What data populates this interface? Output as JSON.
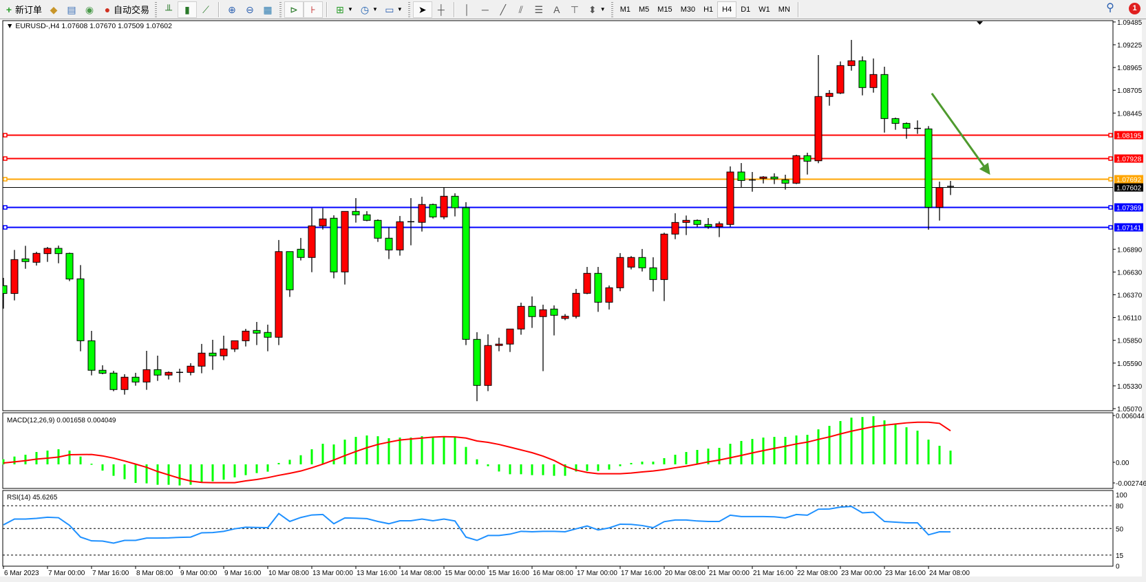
{
  "toolbar": {
    "new_order_label": "新订单",
    "auto_trading_label": "自动交易",
    "icons": [
      "new-order-icon",
      "market-watch-icon",
      "data-window-icon",
      "navigator-icon",
      "terminal-icon",
      "auto-trading-icon",
      "bar-chart-icon",
      "candlestick-icon",
      "line-chart-icon",
      "zoom-in-icon",
      "zoom-out-icon",
      "tile-windows-icon",
      "autoscroll-icon",
      "chart-shift-icon",
      "indicators-icon",
      "periods-icon",
      "templates-icon",
      "cursor-icon",
      "crosshair-icon",
      "vertical-line-icon",
      "horizontal-line-icon",
      "trendline-icon",
      "equidistant-channel-icon",
      "fibonacci-icon",
      "text-icon",
      "text-label-icon",
      "arrows-icon",
      "search-icon",
      "notification-icon"
    ],
    "timeframes": [
      "M1",
      "M5",
      "M15",
      "M30",
      "H1",
      "H4",
      "D1",
      "W1",
      "MN"
    ],
    "active_timeframe": "H4",
    "notification_count": "1"
  },
  "main_chart": {
    "header": "EURUSD-,H4  1.07608 1.07670 1.07509 1.07602",
    "symbol": "EURUSD-",
    "timeframe": "H4",
    "colors": {
      "bull": "#ff0000",
      "bear": "#00ff00",
      "outline": "#000000",
      "arrow": "#4e9a2e"
    }
  },
  "chart_data": [
    {
      "type": "candlestick",
      "title": "EURUSD-,H4",
      "ohlc_header": {
        "open": 1.07608,
        "high": 1.0767,
        "low": 1.07509,
        "close": 1.07602
      },
      "ylim": [
        1.0507,
        1.09485
      ],
      "price_ticks": [
        "1.09485",
        "1.09225",
        "1.08965",
        "1.08705",
        "1.08445",
        "1.06890",
        "1.06630",
        "1.06370",
        "1.06110",
        "1.05850",
        "1.05590",
        "1.05330",
        "1.05070"
      ],
      "x_tick_labels": [
        "6 Mar 2023",
        "7 Mar 00:00",
        "7 Mar 16:00",
        "8 Mar 08:00",
        "9 Mar 00:00",
        "9 Mar 16:00",
        "10 Mar 08:00",
        "13 Mar 00:00",
        "13 Mar 16:00",
        "14 Mar 08:00",
        "15 Mar 00:00",
        "15 Mar 16:00",
        "16 Mar 08:00",
        "17 Mar 00:00",
        "17 Mar 16:00",
        "20 Mar 08:00",
        "21 Mar 00:00",
        "21 Mar 16:00",
        "22 Mar 08:00",
        "23 Mar 00:00",
        "23 Mar 16:00",
        "24 Mar 08:00"
      ],
      "x_tick_every_bars": 4,
      "horizontal_levels": [
        {
          "price": "1.08195",
          "color": "#ff0000"
        },
        {
          "price": "1.07928",
          "color": "#ff0000"
        },
        {
          "price": "1.07692",
          "color": "#ffa500"
        },
        {
          "price": "1.07602",
          "color": "#000000",
          "current": true
        },
        {
          "price": "1.07369",
          "color": "#0000ff"
        },
        {
          "price": "1.07141",
          "color": "#0000ff"
        }
      ],
      "annotation": {
        "type": "arrow",
        "direction": "down-right",
        "from": {
          "bar": 84.3,
          "price": 1.0867
        },
        "to": {
          "bar": 89.6,
          "price": 1.0774
        }
      },
      "candles": [
        [
          1.06474,
          1.06563,
          1.06212,
          1.06385
        ],
        [
          1.06385,
          1.06882,
          1.06306,
          1.06772
        ],
        [
          1.0678,
          1.06929,
          1.06667,
          1.06749
        ],
        [
          1.06741,
          1.06861,
          1.06704,
          1.06843
        ],
        [
          1.0684,
          1.06916,
          1.06746,
          1.069
        ],
        [
          1.069,
          1.06932,
          1.0673,
          1.0684
        ],
        [
          1.06843,
          1.06851,
          1.06526,
          1.0655
        ],
        [
          1.06552,
          1.06709,
          1.05725,
          1.05845
        ],
        [
          1.05845,
          1.05958,
          1.0545,
          1.05508
        ],
        [
          1.05508,
          1.05565,
          1.05463,
          1.05474
        ],
        [
          1.05476,
          1.05502,
          1.05269,
          1.05288
        ],
        [
          1.05288,
          1.05463,
          1.0523,
          1.05429
        ],
        [
          1.05429,
          1.05479,
          1.05332,
          1.05374
        ],
        [
          1.05374,
          1.0573,
          1.05285,
          1.05515
        ],
        [
          1.05515,
          1.05675,
          1.05387,
          1.05453
        ],
        [
          1.05453,
          1.05495,
          1.05403,
          1.05484
        ],
        [
          1.05484,
          1.05526,
          1.05371,
          1.05481
        ],
        [
          1.05484,
          1.05589,
          1.0545,
          1.05555
        ],
        [
          1.05555,
          1.05809,
          1.05474,
          1.05704
        ],
        [
          1.05704,
          1.05856,
          1.05513,
          1.05673
        ],
        [
          1.05673,
          1.05903,
          1.05623,
          1.05751
        ],
        [
          1.05751,
          1.05845,
          1.05717,
          1.05845
        ],
        [
          1.05845,
          1.05981,
          1.0578,
          1.05955
        ],
        [
          1.05963,
          1.0606,
          1.05796,
          1.05932
        ],
        [
          1.0594,
          1.06029,
          1.05725,
          1.05885
        ],
        [
          1.05885,
          1.06995,
          1.05796,
          1.06863
        ],
        [
          1.06863,
          1.06863,
          1.06346,
          1.06427
        ],
        [
          1.0689,
          1.07019,
          1.06762,
          1.06796
        ],
        [
          1.06796,
          1.07359,
          1.06628,
          1.07157
        ],
        [
          1.07157,
          1.07359,
          1.07115,
          1.07236
        ],
        [
          1.07244,
          1.07278,
          1.06558,
          1.06631
        ],
        [
          1.06631,
          1.07322,
          1.06487,
          1.07322
        ],
        [
          1.07322,
          1.07474,
          1.07194,
          1.07283
        ],
        [
          1.07283,
          1.07325,
          1.0721,
          1.0722
        ],
        [
          1.0722,
          1.07231,
          1.06974,
          1.07016
        ],
        [
          1.07016,
          1.07139,
          1.06778,
          1.06882
        ],
        [
          1.06882,
          1.0727,
          1.06817,
          1.07204
        ],
        [
          1.07204,
          1.07474,
          1.06935,
          1.072
        ],
        [
          1.07197,
          1.0749,
          1.07092,
          1.07401
        ],
        [
          1.07401,
          1.07411,
          1.07241,
          1.07259
        ],
        [
          1.07259,
          1.07595,
          1.07233,
          1.07495
        ],
        [
          1.07495,
          1.07529,
          1.07265,
          1.07364
        ],
        [
          1.07364,
          1.07427,
          1.05796,
          1.05861
        ],
        [
          1.05861,
          1.05943,
          1.05155,
          1.05335
        ],
        [
          1.05335,
          1.05919,
          1.0527,
          1.05791
        ],
        [
          1.05791,
          1.0588,
          1.05725,
          1.05807
        ],
        [
          1.05807,
          1.05979,
          1.05717,
          1.05979
        ],
        [
          1.05979,
          1.0628,
          1.05914,
          1.06238
        ],
        [
          1.06238,
          1.06351,
          1.05992,
          1.06121
        ],
        [
          1.06121,
          1.06257,
          1.05498,
          1.06199
        ],
        [
          1.06207,
          1.06249,
          1.05906,
          1.06136
        ],
        [
          1.061,
          1.0615,
          1.0608,
          1.06125
        ],
        [
          1.06123,
          1.06437,
          1.061,
          1.06387
        ],
        [
          1.06387,
          1.06688,
          1.06377,
          1.06615
        ],
        [
          1.06615,
          1.06688,
          1.06175,
          1.06285
        ],
        [
          1.06285,
          1.06476,
          1.06202,
          1.0645
        ],
        [
          1.0645,
          1.06846,
          1.06411,
          1.06796
        ],
        [
          1.06686,
          1.06812,
          1.0666,
          1.06796
        ],
        [
          1.06796,
          1.06893,
          1.06636,
          1.06678
        ],
        [
          1.06678,
          1.06798,
          1.06408,
          1.06544
        ],
        [
          1.06544,
          1.07079,
          1.06298,
          1.07063
        ],
        [
          1.07063,
          1.07301,
          1.07005,
          1.07196
        ],
        [
          1.07196,
          1.07275,
          1.07052,
          1.0722
        ],
        [
          1.0722,
          1.0723,
          1.07144,
          1.07173
        ],
        [
          1.07173,
          1.07246,
          1.07123,
          1.07147
        ],
        [
          1.07147,
          1.07207,
          1.07029,
          1.07181
        ],
        [
          1.07173,
          1.07836,
          1.07144,
          1.07772
        ],
        [
          1.07772,
          1.07874,
          1.076,
          1.07675
        ],
        [
          1.07681,
          1.07772,
          1.07547,
          1.07673
        ],
        [
          1.07699,
          1.07725,
          1.07641,
          1.07715
        ],
        [
          1.07715,
          1.07757,
          1.07634,
          1.07694
        ],
        [
          1.07683,
          1.07741,
          1.07571,
          1.07644
        ],
        [
          1.07644,
          1.07969,
          1.07634,
          1.07958
        ],
        [
          1.07958,
          1.07992,
          1.07743,
          1.07895
        ],
        [
          1.079,
          1.09107,
          1.07872,
          1.08634
        ],
        [
          1.08634,
          1.08707,
          1.08529,
          1.0867
        ],
        [
          1.08673,
          1.09034,
          1.08662,
          1.08987
        ],
        [
          1.08987,
          1.0928,
          1.08929,
          1.09042
        ],
        [
          1.09042,
          1.09092,
          1.08647,
          1.08736
        ],
        [
          1.08736,
          1.09068,
          1.08678,
          1.08885
        ],
        [
          1.08885,
          1.08974,
          1.08222,
          1.08382
        ],
        [
          1.08382,
          1.08393,
          1.08254,
          1.08327
        ],
        [
          1.08327,
          1.08338,
          1.08152,
          1.08272
        ],
        [
          1.0827,
          1.08361,
          1.08207,
          1.08267
        ],
        [
          1.08264,
          1.08296,
          1.07113,
          1.07369
        ],
        [
          1.07369,
          1.07662,
          1.07217,
          1.07594
        ],
        [
          1.07608,
          1.0767,
          1.07509,
          1.07602
        ]
      ]
    },
    {
      "type": "bar",
      "label": "MACD(12,26,9) 0.001658 0.004049",
      "ylim": [
        -0.002746,
        0.006044
      ],
      "y_tick_labels": [
        "0.006044",
        "0.00",
        "-0.002746"
      ],
      "colors": {
        "histogram": "#00ff00",
        "signal": "#ff0000"
      },
      "histogram": [
        0.00061,
        0.00094,
        0.00116,
        0.00149,
        0.00166,
        0.00182,
        0.00166,
        0.00094,
        8e-05,
        -0.00075,
        -0.00138,
        -0.00179,
        -0.00224,
        -0.00229,
        -0.00246,
        -0.00246,
        -0.00254,
        -0.00246,
        -0.00221,
        -0.00204,
        -0.00185,
        -0.00157,
        -0.0013,
        -0.00105,
        -0.00088,
        0.00017,
        0.00055,
        0.0011,
        0.00182,
        0.00248,
        0.0024,
        0.00298,
        0.00331,
        0.00348,
        0.00339,
        0.00315,
        0.00323,
        0.00323,
        0.00339,
        0.00331,
        0.00339,
        0.00331,
        0.0021,
        0.00061,
        -0.00022,
        -0.00086,
        -0.00119,
        -0.00119,
        -0.0013,
        -0.0013,
        -0.00138,
        -0.00138,
        -0.00086,
        -0.0008,
        -0.0008,
        -0.00063,
        -0.00022,
        0.00017,
        0.00033,
        0.00033,
        0.00075,
        0.00116,
        0.00149,
        0.00174,
        0.0019,
        0.00199,
        0.00248,
        0.00282,
        0.00306,
        0.00323,
        0.00331,
        0.00331,
        0.00348,
        0.00356,
        0.00422,
        0.00464,
        0.00522,
        0.00563,
        0.00571,
        0.0058,
        0.0053,
        0.00489,
        0.00447,
        0.00406,
        0.00298,
        0.00224,
        0.001658
      ],
      "signal": [
        0.00017,
        0.0003,
        0.00045,
        0.00063,
        0.00075,
        0.00088,
        0.00116,
        0.00118,
        0.00119,
        0.00102,
        0.00075,
        0.00041,
        3e-05,
        -0.00036,
        -0.00086,
        -0.00127,
        -0.00168,
        -0.00201,
        -0.00218,
        -0.00221,
        -0.00221,
        -0.00221,
        -0.00199,
        -0.00182,
        -0.0016,
        -0.00132,
        -0.00108,
        -0.0008,
        -0.00041,
        3e-05,
        0.00052,
        0.00105,
        0.00155,
        0.00201,
        0.0024,
        0.00268,
        0.00293,
        0.00306,
        0.00317,
        0.00328,
        0.00334,
        0.00331,
        0.00317,
        0.00282,
        0.00265,
        0.0024,
        0.00207,
        0.00174,
        0.00141,
        0.00099,
        0.00047,
        -0.00022,
        -0.00069,
        -0.00097,
        -0.00113,
        -0.00113,
        -0.00113,
        -0.00105,
        -0.00091,
        -0.0008,
        -0.00063,
        -0.00041,
        -0.00022,
        3e-05,
        0.0003,
        0.00052,
        0.0008,
        0.00108,
        0.00138,
        0.00166,
        0.00193,
        0.00218,
        0.00246,
        0.00268,
        0.00301,
        0.00331,
        0.00367,
        0.004,
        0.00428,
        0.00455,
        0.00472,
        0.00486,
        0.005,
        0.00508,
        0.00508,
        0.00494,
        0.004049
      ]
    },
    {
      "type": "line",
      "label": "RSI(14) 45.6265",
      "ylim": [
        0,
        100
      ],
      "levels": [
        80,
        50,
        15
      ],
      "y_tick_labels": [
        "100",
        "80",
        "50",
        "15",
        "0"
      ],
      "color": "#1e90ff",
      "values": [
        54.8,
        62.4,
        62.4,
        63.3,
        64.8,
        64.2,
        54.2,
        38.7,
        33.8,
        33.5,
        30.8,
        34.4,
        34.4,
        37.4,
        37.4,
        37.7,
        38.4,
        38.7,
        44.4,
        44.7,
        46.3,
        49.6,
        51.7,
        51.4,
        51.1,
        69.7,
        59.3,
        64.5,
        67.8,
        68.4,
        56.3,
        63.9,
        63.6,
        63.0,
        59.3,
        56.3,
        60.2,
        60.2,
        62.4,
        60.2,
        62.4,
        59.9,
        38.7,
        34.4,
        40.8,
        40.8,
        42.6,
        46.3,
        45.7,
        46.3,
        46.3,
        45.7,
        49.6,
        53.3,
        48.1,
        50.8,
        55.7,
        55.4,
        53.9,
        51.1,
        59.0,
        61.2,
        61.2,
        59.9,
        59.3,
        59.3,
        67.5,
        65.7,
        65.7,
        65.7,
        65.4,
        63.9,
        68.4,
        67.5,
        75.4,
        75.7,
        78.2,
        79.1,
        70.6,
        71.5,
        59.3,
        58.4,
        57.5,
        57.5,
        41.7,
        45.7,
        45.6265
      ]
    }
  ]
}
